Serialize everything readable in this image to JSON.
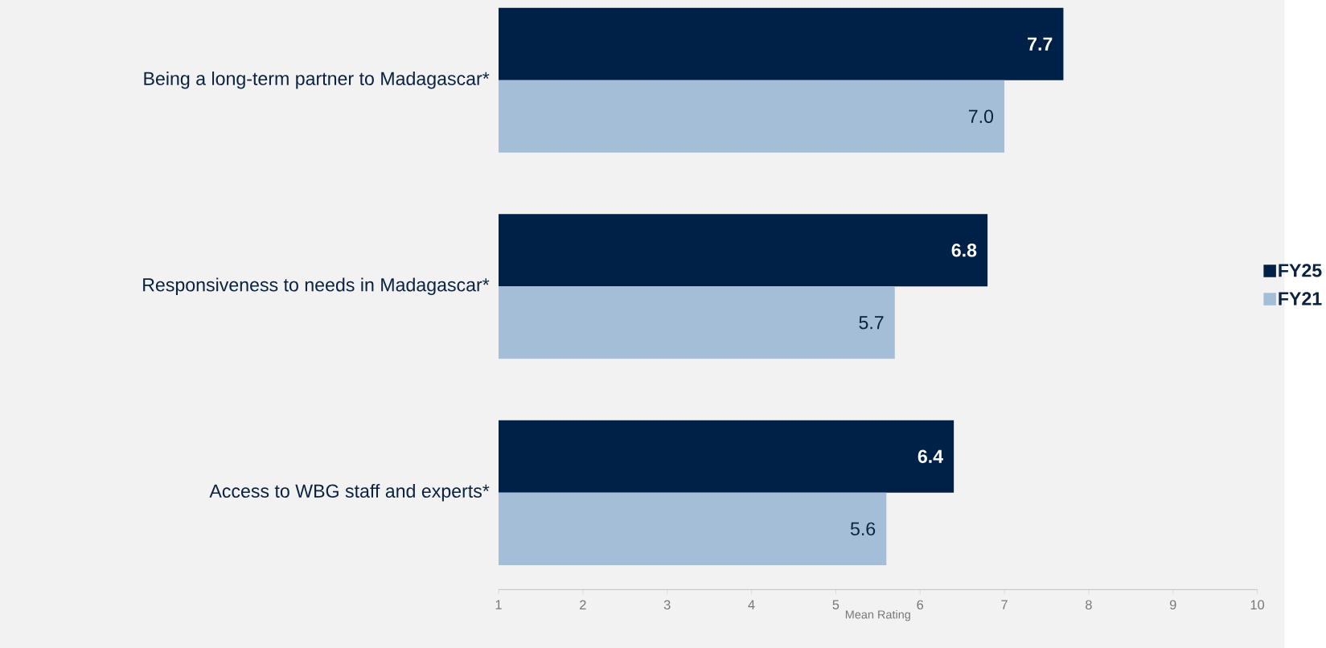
{
  "chart_data": {
    "type": "bar",
    "orientation": "horizontal",
    "xlabel": "Mean Rating",
    "categories": [
      "Being a long-term partner to Madagascar*",
      "Responsiveness to needs in Madagascar*",
      "Access to WBG staff and experts*"
    ],
    "series": [
      {
        "name": "FY25",
        "color": "#002147",
        "values": [
          7.7,
          6.8,
          6.4
        ],
        "value_labels": [
          "7.7",
          "6.8",
          "6.4"
        ]
      },
      {
        "name": "FY21",
        "color": "#a3bed6",
        "values": [
          7.0,
          5.7,
          5.6
        ],
        "value_labels": [
          "7.0",
          "5.7",
          "5.6"
        ]
      }
    ],
    "xlim": [
      1,
      10
    ],
    "xticks": [
      1,
      2,
      3,
      4,
      5,
      6,
      7,
      8,
      9,
      10
    ],
    "grid": false,
    "legend": "right"
  }
}
